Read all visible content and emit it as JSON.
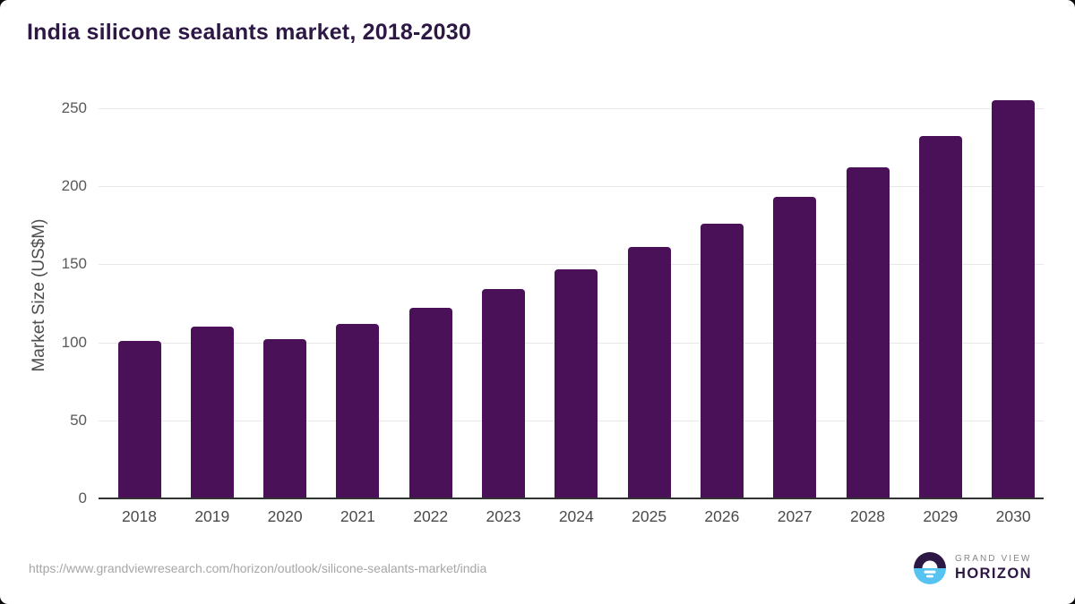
{
  "title": "India silicone sealants market, 2018-2030",
  "source_url": "https://www.grandviewresearch.com/horizon/outlook/silicone-sealants-market/india",
  "logo": {
    "icon": "sun-over-water-icon",
    "top_text": "GRAND VIEW",
    "bottom_text": "HORIZON"
  },
  "colors": {
    "bar": "#4a1158",
    "title": "#2d1745",
    "logo_dark": "#2d1745",
    "logo_blue": "#56c3f0",
    "gridline": "#e8e8e8",
    "axis_line": "#333333",
    "tick_text": "#595959"
  },
  "chart_data": {
    "type": "bar",
    "title": "India silicone sealants market, 2018-2030",
    "categories": [
      "2018",
      "2019",
      "2020",
      "2021",
      "2022",
      "2023",
      "2024",
      "2025",
      "2026",
      "2027",
      "2028",
      "2029",
      "2030"
    ],
    "values": [
      101,
      110,
      102,
      112,
      122,
      134,
      147,
      161,
      176,
      193,
      212,
      232,
      255
    ],
    "xlabel": "",
    "ylabel": "Market Size (US$M)",
    "ylim": [
      0,
      250
    ],
    "yticks": [
      0,
      50,
      100,
      150,
      200,
      250
    ],
    "grid": true,
    "legend": false,
    "bar_color": "#4a1158"
  }
}
